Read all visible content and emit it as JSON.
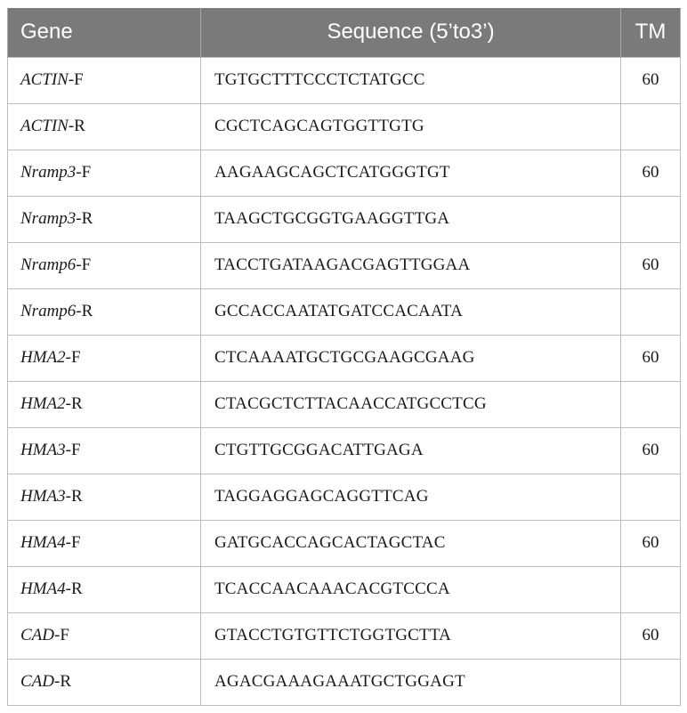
{
  "table": {
    "headers": {
      "gene": "Gene",
      "sequence": "Sequence (5’to3’)",
      "tm": "TM"
    },
    "rows": [
      {
        "gene": "ACTIN",
        "suffix": "-F",
        "sequence": "TGTGCTTTCCCTCTATGCC",
        "tm": "60"
      },
      {
        "gene": "ACTIN",
        "suffix": "-R",
        "sequence": "CGCTCAGCAGTGGTTGTG",
        "tm": ""
      },
      {
        "gene": "Nramp3",
        "suffix": "-F",
        "sequence": "AAGAAGCAGCTCATGGGTGT",
        "tm": "60"
      },
      {
        "gene": "Nramp3",
        "suffix": "-R",
        "sequence": "TAAGCTGCGGTGAAGGTTGA",
        "tm": ""
      },
      {
        "gene": "Nramp6",
        "suffix": "-F",
        "sequence": "TACCTGATAAGACGAGTTGGAA",
        "tm": "60"
      },
      {
        "gene": "Nramp6",
        "suffix": "-R",
        "sequence": "GCCACCAATATGATCCACAATA",
        "tm": ""
      },
      {
        "gene": "HMA2",
        "suffix": "-F",
        "sequence": "CTCAAAATGCTGCGAAGCGAAG",
        "tm": "60"
      },
      {
        "gene": "HMA2",
        "suffix": "-R",
        "sequence": "CTACGCTCTTACAACCATGCCTCG",
        "tm": ""
      },
      {
        "gene": "HMA3",
        "suffix": "-F",
        "sequence": "CTGTTGCGGACATTGAGA",
        "tm": "60"
      },
      {
        "gene": "HMA3",
        "suffix": "-R",
        "sequence": "TAGGAGGAGCAGGTTCAG",
        "tm": ""
      },
      {
        "gene": "HMA4",
        "suffix": "-F",
        "sequence": "GATGCACCAGCACTAGCTAC",
        "tm": "60"
      },
      {
        "gene": "HMA4",
        "suffix": "-R",
        "sequence": "TCACCAACAAACACGTCCCA",
        "tm": ""
      },
      {
        "gene": "CAD",
        "suffix": "-F",
        "sequence": "GTACCTGTGTTCTGGTGCTTA",
        "tm": "60"
      },
      {
        "gene": "CAD",
        "suffix": "-R",
        "sequence": "AGACGAAAGAAATGCTGGAGT",
        "tm": ""
      }
    ]
  },
  "colors": {
    "header_bg": "#7a7a7a",
    "header_text": "#ffffff",
    "grid": "#bdbdbd"
  }
}
